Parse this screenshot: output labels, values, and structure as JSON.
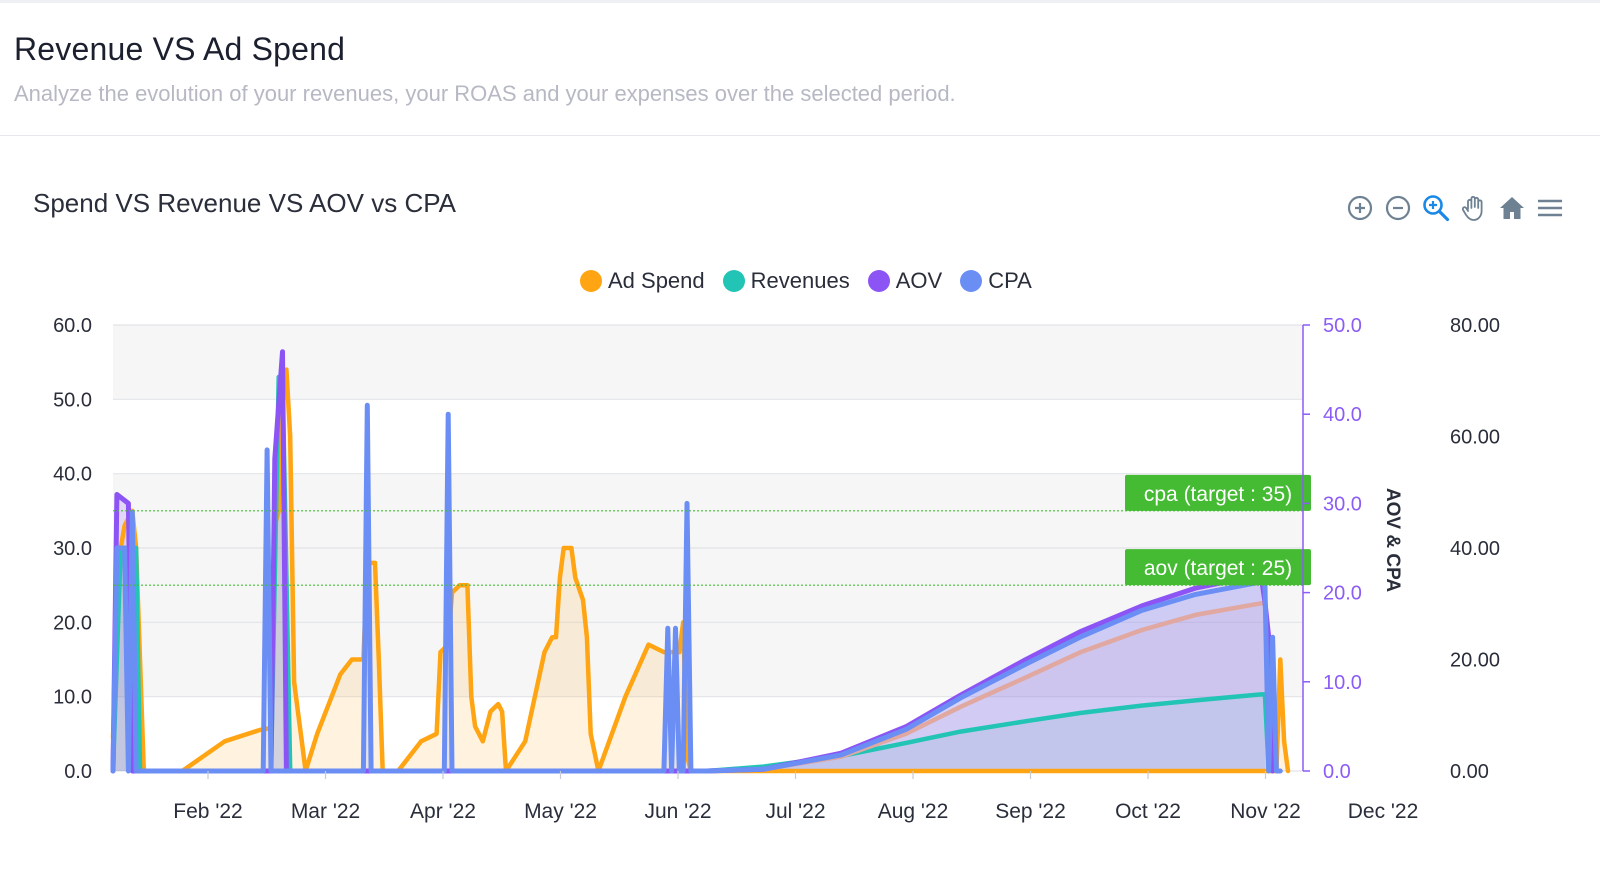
{
  "header": {
    "title": "Revenue VS Ad Spend",
    "subtitle": "Analyze the evolution of your revenues, your ROAS and your expenses over the selected period."
  },
  "toolbar": {
    "icons": [
      "zoom-in-icon",
      "zoom-out-icon",
      "selection-zoom-icon",
      "pan-hand-icon",
      "reset-home-icon",
      "menu-icon"
    ]
  },
  "chart_data": {
    "type": "area",
    "title": "Spend VS Revenue VS AOV vs CPA",
    "x_labels": [
      "Feb '22",
      "Mar '22",
      "Apr '22",
      "May '22",
      "Jun '22",
      "Jul '22",
      "Aug '22",
      "Sep '22",
      "Oct '22",
      "Nov '22",
      "Dec '22"
    ],
    "y_left": {
      "ticks": [
        "0.0",
        "10.0",
        "20.0",
        "30.0",
        "40.0",
        "50.0",
        "60.0"
      ],
      "ylim": [
        0,
        60
      ]
    },
    "y_mid": {
      "label": "AOV & CPA",
      "ticks": [
        "0.0",
        "10.0",
        "20.0",
        "30.0",
        "40.0",
        "50.0"
      ],
      "ylim": [
        0,
        50
      ],
      "color": "#8b5cf6"
    },
    "y_right": {
      "ticks": [
        "0.00",
        "20.00",
        "40.00",
        "60.00",
        "80.00"
      ],
      "ylim": [
        0,
        80
      ]
    },
    "legend": [
      {
        "name": "Ad Spend",
        "color": "#ffa412"
      },
      {
        "name": "Revenues",
        "color": "#22c4b6"
      },
      {
        "name": "AOV",
        "color": "#8c54f5"
      },
      {
        "name": "CPA",
        "color": "#6b8ef5"
      }
    ],
    "annotations": [
      {
        "label": "cpa (target : 35)",
        "y": 35,
        "axis": "left",
        "color": "#44bb33"
      },
      {
        "label": "aov (target : 25)",
        "y": 25,
        "axis": "left",
        "color": "#44bb33"
      }
    ],
    "series": [
      {
        "name": "Ad Spend",
        "axis": "left",
        "points": [
          [
            "2022-01-07",
            4.5
          ],
          [
            "2022-01-09",
            30
          ],
          [
            "2022-01-10",
            33
          ],
          [
            "2022-01-12",
            35
          ],
          [
            "2022-01-13",
            30
          ],
          [
            "2022-01-14",
            15
          ],
          [
            "2022-01-15",
            0
          ],
          [
            "2022-01-25",
            0
          ],
          [
            "2022-02-05",
            4
          ],
          [
            "2022-02-14",
            5.5
          ],
          [
            "2022-02-17",
            5.8
          ],
          [
            "2022-02-18",
            33
          ],
          [
            "2022-02-19",
            35
          ],
          [
            "2022-02-20",
            52
          ],
          [
            "2022-02-21",
            54
          ],
          [
            "2022-02-22",
            45
          ],
          [
            "2022-02-23",
            12
          ],
          [
            "2022-02-24",
            8
          ],
          [
            "2022-02-25",
            4
          ],
          [
            "2022-02-26",
            0
          ],
          [
            "2022-03-01",
            5
          ],
          [
            "2022-03-07",
            13
          ],
          [
            "2022-03-10",
            15
          ],
          [
            "2022-03-13",
            15
          ],
          [
            "2022-03-14",
            28
          ],
          [
            "2022-03-16",
            28
          ],
          [
            "2022-03-17",
            15
          ],
          [
            "2022-03-18",
            0
          ],
          [
            "2022-03-22",
            0
          ],
          [
            "2022-03-28",
            4
          ],
          [
            "2022-04-01",
            5
          ],
          [
            "2022-04-02",
            16
          ],
          [
            "2022-04-04",
            17
          ],
          [
            "2022-04-05",
            24
          ],
          [
            "2022-04-07",
            25
          ],
          [
            "2022-04-09",
            25
          ],
          [
            "2022-04-10",
            10
          ],
          [
            "2022-04-11",
            6
          ],
          [
            "2022-04-13",
            4
          ],
          [
            "2022-04-15",
            8
          ],
          [
            "2022-04-17",
            9
          ],
          [
            "2022-04-18",
            8
          ],
          [
            "2022-04-19",
            0
          ],
          [
            "2022-04-24",
            4
          ],
          [
            "2022-04-29",
            16
          ],
          [
            "2022-05-01",
            18
          ],
          [
            "2022-05-02",
            18
          ],
          [
            "2022-05-03",
            26
          ],
          [
            "2022-05-04",
            30
          ],
          [
            "2022-05-06",
            30
          ],
          [
            "2022-05-07",
            26
          ],
          [
            "2022-05-09",
            23
          ],
          [
            "2022-05-10",
            18
          ],
          [
            "2022-05-11",
            5
          ],
          [
            "2022-05-13",
            0
          ],
          [
            "2022-05-20",
            10
          ],
          [
            "2022-05-26",
            17
          ],
          [
            "2022-05-30",
            16
          ],
          [
            "2022-06-03",
            16
          ],
          [
            "2022-06-04",
            20
          ],
          [
            "2022-06-05",
            2
          ],
          [
            "2022-06-06",
            0
          ],
          [
            "2022-06-10",
            0
          ],
          [
            "2022-07-01",
            0
          ],
          [
            "2022-08-01",
            0
          ],
          [
            "2022-09-01",
            0
          ],
          [
            "2022-10-01",
            0
          ],
          [
            "2022-10-30",
            0
          ],
          [
            "2022-11-05",
            0
          ],
          [
            "2022-11-06",
            15
          ],
          [
            "2022-11-07",
            4
          ],
          [
            "2022-11-08",
            0
          ]
        ]
      },
      {
        "name": "Revenues",
        "axis": "left",
        "points": [
          [
            "2022-01-07",
            0
          ],
          [
            "2022-01-09",
            30
          ],
          [
            "2022-01-13",
            30
          ],
          [
            "2022-01-14",
            0
          ],
          [
            "2022-02-17",
            0
          ],
          [
            "2022-02-19",
            53
          ],
          [
            "2022-02-20",
            53
          ],
          [
            "2022-02-22",
            0
          ],
          [
            "2022-06-10",
            0
          ],
          [
            "2022-06-25",
            0.6
          ],
          [
            "2022-07-15",
            2
          ],
          [
            "2022-08-01",
            3.8
          ],
          [
            "2022-08-15",
            5.3
          ],
          [
            "2022-09-01",
            6.7
          ],
          [
            "2022-09-15",
            7.8
          ],
          [
            "2022-10-01",
            8.8
          ],
          [
            "2022-10-15",
            9.5
          ],
          [
            "2022-11-01",
            10.3
          ],
          [
            "2022-11-02",
            10.3
          ],
          [
            "2022-11-03",
            0
          ]
        ]
      },
      {
        "name": "AOV",
        "axis": "mid",
        "points": [
          [
            "2022-01-07",
            0
          ],
          [
            "2022-01-08",
            31
          ],
          [
            "2022-01-11",
            30
          ],
          [
            "2022-01-12",
            0
          ],
          [
            "2022-02-17",
            0
          ],
          [
            "2022-02-18",
            35
          ],
          [
            "2022-02-20",
            47
          ],
          [
            "2022-02-21",
            0
          ],
          [
            "2022-06-10",
            0
          ],
          [
            "2022-06-25",
            0.2
          ],
          [
            "2022-07-15",
            2
          ],
          [
            "2022-08-01",
            5
          ],
          [
            "2022-08-15",
            8.5
          ],
          [
            "2022-09-01",
            12.5
          ],
          [
            "2022-09-15",
            15.6
          ],
          [
            "2022-10-01",
            18.5
          ],
          [
            "2022-10-15",
            20.5
          ],
          [
            "2022-11-01",
            22
          ],
          [
            "2022-11-02",
            19
          ],
          [
            "2022-11-03",
            15
          ],
          [
            "2022-11-04",
            0
          ]
        ]
      },
      {
        "name": "CPA",
        "axis": "mid",
        "points": [
          [
            "2022-01-07",
            0
          ],
          [
            "2022-01-08",
            25
          ],
          [
            "2022-01-10",
            25
          ],
          [
            "2022-01-11",
            0
          ],
          [
            "2022-01-12",
            29
          ],
          [
            "2022-01-13",
            0
          ],
          [
            "2022-02-15",
            0
          ],
          [
            "2022-02-16",
            36
          ],
          [
            "2022-02-17",
            0
          ],
          [
            "2022-02-19",
            0
          ],
          [
            "2022-03-13",
            0
          ],
          [
            "2022-03-14",
            41
          ],
          [
            "2022-03-15",
            0
          ],
          [
            "2022-04-03",
            0
          ],
          [
            "2022-04-04",
            40
          ],
          [
            "2022-04-05",
            0
          ],
          [
            "2022-05-30",
            0
          ],
          [
            "2022-05-31",
            16
          ],
          [
            "2022-06-01",
            0
          ],
          [
            "2022-06-02",
            16
          ],
          [
            "2022-06-03",
            0
          ],
          [
            "2022-06-04",
            0
          ],
          [
            "2022-06-05",
            30
          ],
          [
            "2022-06-06",
            0
          ],
          [
            "2022-06-10",
            0
          ],
          [
            "2022-06-25",
            0.2
          ],
          [
            "2022-07-15",
            1.8
          ],
          [
            "2022-08-01",
            4.7
          ],
          [
            "2022-08-15",
            8.2
          ],
          [
            "2022-09-01",
            12
          ],
          [
            "2022-09-15",
            15
          ],
          [
            "2022-10-01",
            18
          ],
          [
            "2022-10-15",
            19.8
          ],
          [
            "2022-11-01",
            21.2
          ],
          [
            "2022-11-02",
            21.2
          ],
          [
            "2022-11-03",
            0
          ],
          [
            "2022-11-04",
            15
          ],
          [
            "2022-11-05",
            0
          ],
          [
            "2022-11-06",
            0
          ]
        ]
      },
      {
        "name": "",
        "axis": "mid",
        "color": "#e0a8a0",
        "points": [
          [
            "2022-06-10",
            0
          ],
          [
            "2022-06-25",
            0.2
          ],
          [
            "2022-07-15",
            1.6
          ],
          [
            "2022-08-01",
            4.2
          ],
          [
            "2022-08-15",
            7.2
          ],
          [
            "2022-09-01",
            10.5
          ],
          [
            "2022-09-15",
            13.3
          ],
          [
            "2022-10-01",
            15.8
          ],
          [
            "2022-10-15",
            17.5
          ],
          [
            "2022-11-01",
            18.8
          ],
          [
            "2022-11-02",
            18.8
          ]
        ]
      }
    ]
  }
}
